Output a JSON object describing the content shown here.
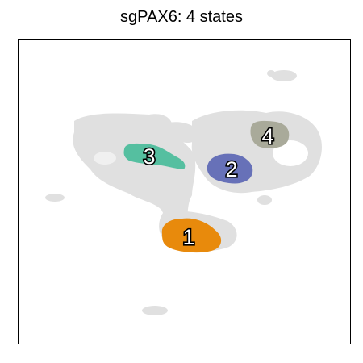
{
  "chart_data": {
    "type": "scatter",
    "title": "sgPAX6: 4 states",
    "xlabel": "",
    "ylabel": "",
    "grid": false,
    "background_color": "#e0e0e0",
    "states": [
      {
        "label": "1",
        "color": "#e88a0c"
      },
      {
        "label": "2",
        "color": "#6771b8"
      },
      {
        "label": "3",
        "color": "#55bfa0"
      },
      {
        "label": "4",
        "color": "#a9aa9a"
      }
    ]
  }
}
